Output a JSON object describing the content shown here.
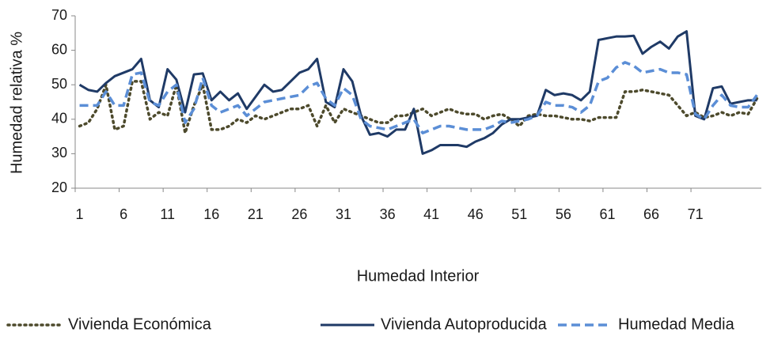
{
  "chart_data": {
    "type": "line",
    "x_label": "Humedad Interior",
    "y_label": "Humedad relativa %",
    "categories": [
      1,
      null,
      null,
      null,
      null,
      6,
      null,
      null,
      null,
      null,
      11,
      null,
      null,
      null,
      null,
      16,
      null,
      null,
      null,
      null,
      21,
      null,
      null,
      null,
      null,
      26,
      null,
      null,
      null,
      null,
      31,
      null,
      null,
      null,
      null,
      36,
      null,
      null,
      null,
      null,
      41,
      null,
      null,
      null,
      null,
      46,
      null,
      null,
      null,
      null,
      51,
      null,
      null,
      null,
      null,
      56,
      null,
      null,
      null,
      null,
      61,
      null,
      null,
      null,
      null,
      66,
      null,
      null,
      null,
      null,
      71,
      null,
      null,
      null,
      null,
      null,
      null,
      null
    ],
    "ylim": [
      20,
      70
    ],
    "yticks": [
      20,
      30,
      40,
      50,
      60,
      70
    ],
    "grid": false,
    "legend": "bottom",
    "series": [
      {
        "name": "Vivienda Económica",
        "color": "#4d4a2c",
        "style": "dotted",
        "values": [
          38,
          39,
          43,
          50,
          37,
          38,
          51,
          51,
          40,
          42,
          41,
          50,
          36,
          44,
          50,
          37,
          37,
          38,
          40,
          39,
          41,
          40,
          41,
          42,
          43,
          43,
          44,
          38,
          44,
          39,
          43,
          42,
          41,
          40,
          39,
          39,
          41,
          41,
          42,
          43,
          41,
          42,
          43,
          42,
          41.5,
          41.5,
          40,
          41,
          41.5,
          40,
          38,
          41,
          41.5,
          41,
          41,
          40.5,
          40,
          40,
          39.5,
          40.5,
          40.5,
          40.5,
          48,
          48,
          48.5,
          48,
          47.5,
          47,
          44,
          41,
          42,
          40.5,
          41,
          42,
          41,
          42,
          41.5,
          46
        ]
      },
      {
        "name": "Vivienda Autoproducida",
        "color": "#1f3a66",
        "style": "solid",
        "values": [
          50,
          48.5,
          48,
          50.5,
          52.5,
          53.5,
          54.5,
          57.5,
          45.5,
          43.5,
          54.5,
          51.5,
          42,
          53,
          53.3,
          45.5,
          48,
          45.5,
          47.5,
          43,
          46.5,
          50,
          48,
          48.5,
          51,
          53.5,
          54.5,
          57.5,
          45,
          43.5,
          54.5,
          51,
          41,
          35.5,
          36,
          35,
          37,
          37,
          43,
          30,
          31,
          32.5,
          32.5,
          32.5,
          32,
          33.5,
          34.5,
          36,
          38.5,
          40,
          40,
          40.5,
          41,
          48.5,
          47,
          47.5,
          47,
          45.5,
          48,
          63,
          63.5,
          64,
          64,
          64.2,
          59,
          61,
          62.5,
          60.5,
          64,
          65.5,
          41,
          40,
          49,
          49.5,
          44.5,
          45,
          45.5,
          45.5
        ]
      },
      {
        "name": "Humedad Media",
        "color": "#5b8ed6",
        "style": "dashed",
        "values": [
          44,
          44,
          44,
          48,
          44,
          44,
          53,
          53.5,
          45,
          44,
          48,
          50,
          39,
          43,
          52,
          44,
          42,
          43,
          44,
          41,
          43,
          45,
          45.5,
          46,
          46.5,
          47,
          49.5,
          50.5,
          46,
          44,
          49,
          47,
          40,
          38,
          37.5,
          37,
          38,
          39,
          40,
          36,
          37,
          38,
          38,
          37.5,
          37,
          37,
          37,
          38,
          39.5,
          39,
          39.5,
          40,
          41,
          45,
          44,
          44,
          43.5,
          42,
          44,
          51,
          52,
          55,
          56.5,
          55.5,
          53.5,
          54,
          54.5,
          53.5,
          53.5,
          53,
          41.5,
          40,
          44,
          47,
          44,
          43.5,
          43.5,
          47
        ]
      }
    ]
  }
}
